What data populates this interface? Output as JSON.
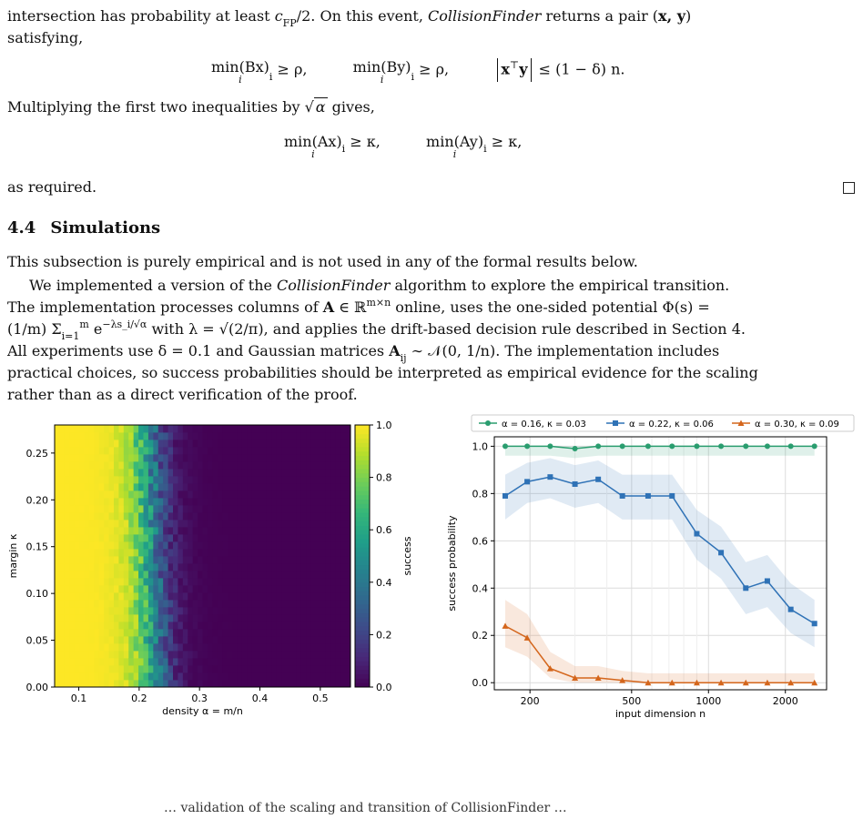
{
  "text": {
    "line1": "intersection has probability at least c_FP/2. On this event, CollisionFinder returns a pair (x, y)",
    "line1_a": "intersection has probability at least ",
    "line1_cfp": "c",
    "line1_cfp_sub": "FP",
    "line1_b": "/2. On this event, ",
    "line1_cf": "CollisionFinder",
    "line1_c": " returns a pair (",
    "line1_xy": "x, y",
    "line1_d": ")",
    "line2": "satisfying,",
    "eq1_a": "min(Bx)",
    "eq1_a_sub": "i",
    "eq1_a_rest": " ≥ ρ,",
    "eq1_b": "min(By)",
    "eq1_b_sub": "i",
    "eq1_b_rest": " ≥ ρ,",
    "eq1_c": "x",
    "eq1_c_sup": "⊤",
    "eq1_c_y": "y",
    "eq1_c_rest": " ≤ (1 − δ) n.",
    "line3_a": "Multiplying the first two inequalities by ",
    "line3_sqrt": "α",
    "line3_b": " gives,",
    "eq2_a": "min(Ax)",
    "eq2_a_sub": "i",
    "eq2_a_rest": " ≥ κ,",
    "eq2_b": "min(Ay)",
    "eq2_b_sub": "i",
    "eq2_b_rest": " ≥ κ,",
    "min_under": "i",
    "as_required": "as required."
  },
  "section": {
    "number": "4.4",
    "title": "Simulations"
  },
  "body": {
    "p1": "This subsection is purely empirical and is not used in any of the formal results below.",
    "p2_l1_a": "We implemented a version of the ",
    "p2_l1_cf": "CollisionFinder",
    "p2_l1_b": " algorithm to explore the empirical transition.",
    "p2_l2_a": "The implementation processes columns of ",
    "p2_l2_A": "A",
    "p2_l2_b": " ∈ ℝ",
    "p2_l2_sup": "m×n",
    "p2_l2_c": " online, uses the one-sided potential Φ(s) =",
    "p2_l3_a": "(1/m) Σ",
    "p2_l3_sub": "i=1",
    "p2_l3_sup": "m",
    "p2_l3_b": " e",
    "p2_l3_exp": "−λs_i/√α",
    "p2_l3_c": " with λ = √(2/π), and applies the drift-based decision rule described in Section 4.",
    "p2_l4_a": "All experiments use δ = 0.1 and Gaussian matrices ",
    "p2_l4_A": "A",
    "p2_l4_sub": "ij",
    "p2_l4_b": " ∼ 𝒩(0, 1/n). The implementation includes",
    "p2_l5": "practical choices, so success probabilities should be interpreted as empirical evidence for the scaling",
    "p2_l6": "rather than as a direct verification of the proof."
  },
  "caption_partial": "… validation of the scaling and transition of CollisionFinder …",
  "chart_data": [
    {
      "type": "heatmap",
      "title": "",
      "xlabel": "density α = m/n",
      "ylabel": "margin κ",
      "x_ticks": [
        0.1,
        0.2,
        0.3,
        0.4,
        0.5
      ],
      "x_tick_labels": [
        "0.1",
        "0.2",
        "0.3",
        "0.4",
        "0.5"
      ],
      "y_ticks": [
        0.0,
        0.05,
        0.1,
        0.15,
        0.2,
        0.25
      ],
      "y_tick_labels": [
        "0.00",
        "0.05",
        "0.10",
        "0.15",
        "0.20",
        "0.25"
      ],
      "xlim": [
        0.06,
        0.55
      ],
      "ylim": [
        0.0,
        0.28
      ],
      "colorbar": {
        "label": "success",
        "ticks": [
          0.0,
          0.2,
          0.4,
          0.6,
          0.8,
          1.0
        ],
        "tick_labels": [
          "0.0",
          "0.2",
          "0.4",
          "0.6",
          "0.8",
          "1.0"
        ],
        "colormap": "viridis"
      },
      "transition": {
        "full_success_below_alpha": 0.17,
        "zero_success_above_alpha": 0.3,
        "midpoint_alpha": 0.22
      }
    },
    {
      "type": "line",
      "title": "",
      "xlabel": "input dimension n",
      "ylabel": "success probability",
      "x_scale": "log",
      "x_ticks": [
        200,
        500,
        1000,
        2000
      ],
      "x_tick_labels": [
        "200",
        "500",
        "1000",
        "2000"
      ],
      "y_ticks": [
        0.0,
        0.2,
        0.4,
        0.6,
        0.8,
        1.0
      ],
      "y_tick_labels": [
        "0.0",
        "0.2",
        "0.4",
        "0.6",
        "0.8",
        "1.0"
      ],
      "ylim": [
        -0.03,
        1.04
      ],
      "grid": true,
      "legend": "top",
      "x": [
        160,
        195,
        240,
        300,
        370,
        460,
        580,
        720,
        900,
        1120,
        1400,
        1700,
        2100,
        2600
      ],
      "series": [
        {
          "name": "α = 0.16, κ = 0.03",
          "color": "#2a9d6f",
          "marker": "circle",
          "values": [
            1.0,
            1.0,
            1.0,
            0.99,
            1.0,
            1.0,
            1.0,
            1.0,
            1.0,
            1.0,
            1.0,
            1.0,
            1.0,
            1.0
          ],
          "band_low": [
            0.96,
            0.96,
            0.96,
            0.95,
            0.96,
            0.96,
            0.96,
            0.96,
            0.96,
            0.96,
            0.96,
            0.96,
            0.96,
            0.96
          ],
          "band_high": [
            1.0,
            1.0,
            1.0,
            1.0,
            1.0,
            1.0,
            1.0,
            1.0,
            1.0,
            1.0,
            1.0,
            1.0,
            1.0,
            1.0
          ]
        },
        {
          "name": "α = 0.22, κ = 0.06",
          "color": "#2f72b6",
          "marker": "square",
          "values": [
            0.79,
            0.85,
            0.87,
            0.84,
            0.86,
            0.79,
            0.79,
            0.79,
            0.63,
            0.55,
            0.4,
            0.43,
            0.31,
            0.25
          ],
          "band_low": [
            0.69,
            0.76,
            0.78,
            0.74,
            0.76,
            0.69,
            0.69,
            0.69,
            0.52,
            0.44,
            0.29,
            0.32,
            0.21,
            0.15
          ],
          "band_high": [
            0.88,
            0.93,
            0.95,
            0.92,
            0.94,
            0.88,
            0.88,
            0.88,
            0.73,
            0.66,
            0.51,
            0.54,
            0.42,
            0.35
          ]
        },
        {
          "name": "α = 0.30, κ = 0.09",
          "color": "#d4661c",
          "marker": "triangle",
          "values": [
            0.24,
            0.19,
            0.06,
            0.02,
            0.02,
            0.01,
            0.0,
            0.0,
            0.0,
            0.0,
            0.0,
            0.0,
            0.0,
            0.0
          ],
          "band_low": [
            0.15,
            0.11,
            0.02,
            0.0,
            0.0,
            0.0,
            0.0,
            0.0,
            0.0,
            0.0,
            0.0,
            0.0,
            0.0,
            0.0
          ],
          "band_high": [
            0.35,
            0.29,
            0.13,
            0.07,
            0.07,
            0.05,
            0.04,
            0.04,
            0.04,
            0.04,
            0.04,
            0.04,
            0.04,
            0.04
          ]
        }
      ]
    }
  ]
}
